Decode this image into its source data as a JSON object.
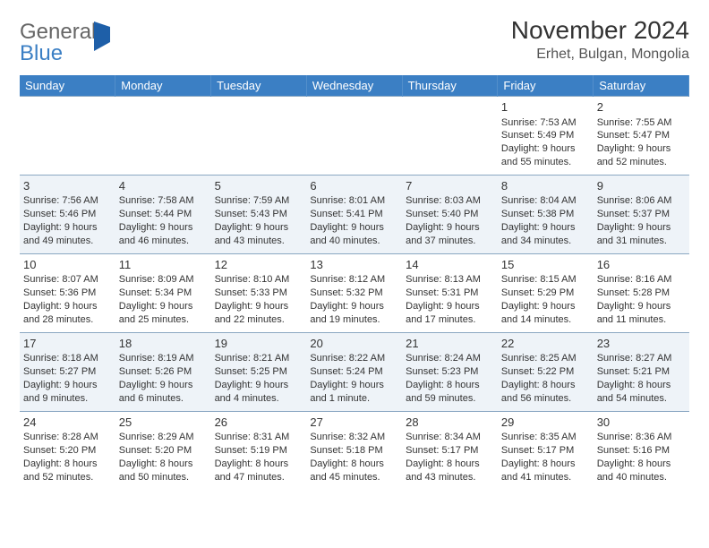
{
  "logo": {
    "text1": "General",
    "text2": "Blue"
  },
  "header": {
    "month_title": "November 2024",
    "location": "Erhet, Bulgan, Mongolia"
  },
  "colors": {
    "header_bg": "#3b7fc4",
    "header_text": "#ffffff",
    "row_alt_bg": "#eef3f8",
    "cell_border": "#8aa7c2",
    "logo_gray": "#666666",
    "logo_blue": "#3b7fc4",
    "logo_tri": "#1e5fa8",
    "body_text": "#333333"
  },
  "typography": {
    "month_title_fontsize": 28,
    "location_fontsize": 16,
    "dayhead_fontsize": 13,
    "cell_fontsize": 11,
    "daynum_fontsize": 13
  },
  "day_headers": [
    "Sunday",
    "Monday",
    "Tuesday",
    "Wednesday",
    "Thursday",
    "Friday",
    "Saturday"
  ],
  "weeks": [
    [
      null,
      null,
      null,
      null,
      null,
      {
        "n": "1",
        "sr": "Sunrise: 7:53 AM",
        "ss": "Sunset: 5:49 PM",
        "dl": "Daylight: 9 hours and 55 minutes."
      },
      {
        "n": "2",
        "sr": "Sunrise: 7:55 AM",
        "ss": "Sunset: 5:47 PM",
        "dl": "Daylight: 9 hours and 52 minutes."
      }
    ],
    [
      {
        "n": "3",
        "sr": "Sunrise: 7:56 AM",
        "ss": "Sunset: 5:46 PM",
        "dl": "Daylight: 9 hours and 49 minutes."
      },
      {
        "n": "4",
        "sr": "Sunrise: 7:58 AM",
        "ss": "Sunset: 5:44 PM",
        "dl": "Daylight: 9 hours and 46 minutes."
      },
      {
        "n": "5",
        "sr": "Sunrise: 7:59 AM",
        "ss": "Sunset: 5:43 PM",
        "dl": "Daylight: 9 hours and 43 minutes."
      },
      {
        "n": "6",
        "sr": "Sunrise: 8:01 AM",
        "ss": "Sunset: 5:41 PM",
        "dl": "Daylight: 9 hours and 40 minutes."
      },
      {
        "n": "7",
        "sr": "Sunrise: 8:03 AM",
        "ss": "Sunset: 5:40 PM",
        "dl": "Daylight: 9 hours and 37 minutes."
      },
      {
        "n": "8",
        "sr": "Sunrise: 8:04 AM",
        "ss": "Sunset: 5:38 PM",
        "dl": "Daylight: 9 hours and 34 minutes."
      },
      {
        "n": "9",
        "sr": "Sunrise: 8:06 AM",
        "ss": "Sunset: 5:37 PM",
        "dl": "Daylight: 9 hours and 31 minutes."
      }
    ],
    [
      {
        "n": "10",
        "sr": "Sunrise: 8:07 AM",
        "ss": "Sunset: 5:36 PM",
        "dl": "Daylight: 9 hours and 28 minutes."
      },
      {
        "n": "11",
        "sr": "Sunrise: 8:09 AM",
        "ss": "Sunset: 5:34 PM",
        "dl": "Daylight: 9 hours and 25 minutes."
      },
      {
        "n": "12",
        "sr": "Sunrise: 8:10 AM",
        "ss": "Sunset: 5:33 PM",
        "dl": "Daylight: 9 hours and 22 minutes."
      },
      {
        "n": "13",
        "sr": "Sunrise: 8:12 AM",
        "ss": "Sunset: 5:32 PM",
        "dl": "Daylight: 9 hours and 19 minutes."
      },
      {
        "n": "14",
        "sr": "Sunrise: 8:13 AM",
        "ss": "Sunset: 5:31 PM",
        "dl": "Daylight: 9 hours and 17 minutes."
      },
      {
        "n": "15",
        "sr": "Sunrise: 8:15 AM",
        "ss": "Sunset: 5:29 PM",
        "dl": "Daylight: 9 hours and 14 minutes."
      },
      {
        "n": "16",
        "sr": "Sunrise: 8:16 AM",
        "ss": "Sunset: 5:28 PM",
        "dl": "Daylight: 9 hours and 11 minutes."
      }
    ],
    [
      {
        "n": "17",
        "sr": "Sunrise: 8:18 AM",
        "ss": "Sunset: 5:27 PM",
        "dl": "Daylight: 9 hours and 9 minutes."
      },
      {
        "n": "18",
        "sr": "Sunrise: 8:19 AM",
        "ss": "Sunset: 5:26 PM",
        "dl": "Daylight: 9 hours and 6 minutes."
      },
      {
        "n": "19",
        "sr": "Sunrise: 8:21 AM",
        "ss": "Sunset: 5:25 PM",
        "dl": "Daylight: 9 hours and 4 minutes."
      },
      {
        "n": "20",
        "sr": "Sunrise: 8:22 AM",
        "ss": "Sunset: 5:24 PM",
        "dl": "Daylight: 9 hours and 1 minute."
      },
      {
        "n": "21",
        "sr": "Sunrise: 8:24 AM",
        "ss": "Sunset: 5:23 PM",
        "dl": "Daylight: 8 hours and 59 minutes."
      },
      {
        "n": "22",
        "sr": "Sunrise: 8:25 AM",
        "ss": "Sunset: 5:22 PM",
        "dl": "Daylight: 8 hours and 56 minutes."
      },
      {
        "n": "23",
        "sr": "Sunrise: 8:27 AM",
        "ss": "Sunset: 5:21 PM",
        "dl": "Daylight: 8 hours and 54 minutes."
      }
    ],
    [
      {
        "n": "24",
        "sr": "Sunrise: 8:28 AM",
        "ss": "Sunset: 5:20 PM",
        "dl": "Daylight: 8 hours and 52 minutes."
      },
      {
        "n": "25",
        "sr": "Sunrise: 8:29 AM",
        "ss": "Sunset: 5:20 PM",
        "dl": "Daylight: 8 hours and 50 minutes."
      },
      {
        "n": "26",
        "sr": "Sunrise: 8:31 AM",
        "ss": "Sunset: 5:19 PM",
        "dl": "Daylight: 8 hours and 47 minutes."
      },
      {
        "n": "27",
        "sr": "Sunrise: 8:32 AM",
        "ss": "Sunset: 5:18 PM",
        "dl": "Daylight: 8 hours and 45 minutes."
      },
      {
        "n": "28",
        "sr": "Sunrise: 8:34 AM",
        "ss": "Sunset: 5:17 PM",
        "dl": "Daylight: 8 hours and 43 minutes."
      },
      {
        "n": "29",
        "sr": "Sunrise: 8:35 AM",
        "ss": "Sunset: 5:17 PM",
        "dl": "Daylight: 8 hours and 41 minutes."
      },
      {
        "n": "30",
        "sr": "Sunrise: 8:36 AM",
        "ss": "Sunset: 5:16 PM",
        "dl": "Daylight: 8 hours and 40 minutes."
      }
    ]
  ]
}
